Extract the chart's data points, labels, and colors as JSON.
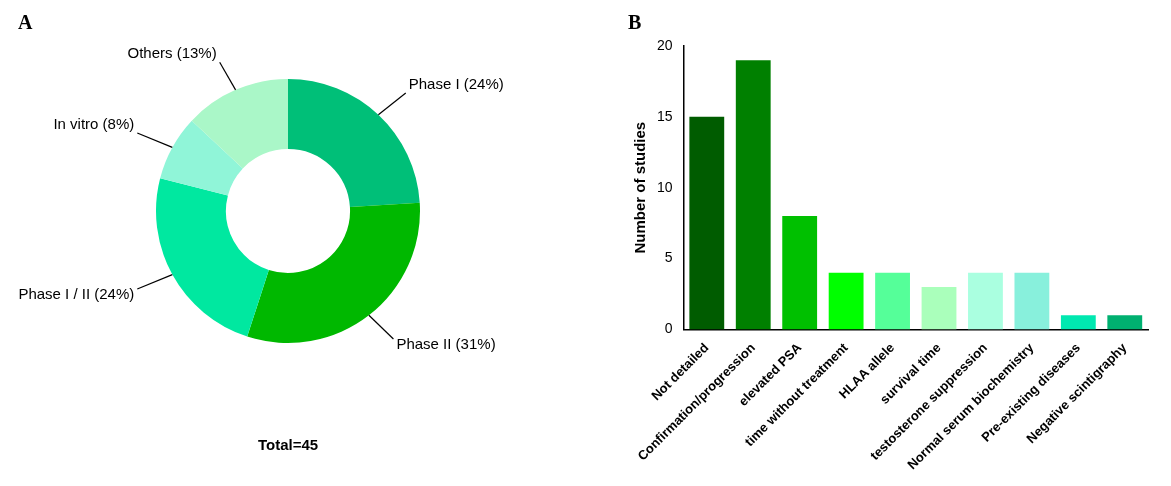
{
  "chart_data": [
    {
      "type": "donut",
      "title": "A",
      "categories": [
        "Phase I (24%)",
        "Phase II (31%)",
        "Phase I / II (24%)",
        "In vitro (8%)",
        "Others (13%)"
      ],
      "values": [
        24,
        31,
        24,
        8,
        13
      ],
      "colors": [
        "#00bf78",
        "#00b800",
        "#00e8a0",
        "#90f5d8",
        "#aaf7c8"
      ],
      "annotations": [
        "Total=45"
      ]
    },
    {
      "type": "bar",
      "title": "B",
      "ylabel": "Number of studies",
      "categories": [
        "Not detailed",
        "Confirmation/progression",
        "elevated PSA",
        "time without treatment",
        "HLAA allele",
        "survival time",
        "testosterone suppression",
        "Normal serum biochemistry",
        "Pre-existing diseases",
        "Negative scintigraphy"
      ],
      "values": [
        15,
        19,
        8,
        4,
        4,
        3,
        4,
        4,
        1,
        1
      ],
      "colors": [
        "#005c00",
        "#008000",
        "#00c000",
        "#00ff00",
        "#55ff99",
        "#aaffbb",
        "#aaffe0",
        "#88f0dc",
        "#00e8b0",
        "#00b070"
      ],
      "ylim": [
        0,
        20
      ],
      "yticks": [
        0,
        5,
        10,
        15,
        20
      ]
    }
  ]
}
